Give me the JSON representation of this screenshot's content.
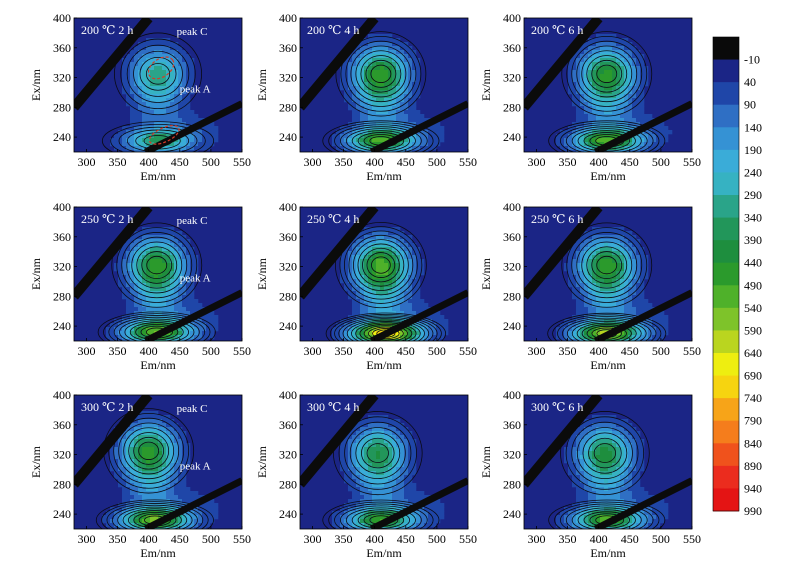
{
  "colors": {
    "background": "#1e2a8c",
    "contour_line": "#0a0a14",
    "scatter_band": "#0b0b0b",
    "annotation": "#ffffff",
    "marker": "#d23c28"
  },
  "colorbar": {
    "ticks": [
      "-10",
      "40",
      "90",
      "140",
      "190",
      "240",
      "290",
      "340",
      "390",
      "440",
      "490",
      "540",
      "590",
      "640",
      "690",
      "740",
      "790",
      "840",
      "890",
      "940",
      "990"
    ],
    "colors": [
      "#0a0a0a",
      "#1b2586",
      "#1f46a8",
      "#2f6fc4",
      "#3592d4",
      "#3aacd8",
      "#36b2c2",
      "#2aa489",
      "#22965a",
      "#1e8e3e",
      "#2b9a2c",
      "#4fb12a",
      "#7ec32a",
      "#bad51f",
      "#eeee10",
      "#f6d410",
      "#f7a418",
      "#f57d1c",
      "#f0521c",
      "#eb2c1e",
      "#e41414"
    ]
  },
  "chart_data": [
    {
      "type": "heatmap",
      "label": "200 ℃ 2 h",
      "xlabel": "Em/nm",
      "ylabel": "Ex/nm",
      "xlim": [
        280,
        550
      ],
      "ylim": [
        220,
        400
      ],
      "xticks": [
        "300",
        "350",
        "400",
        "450",
        "500",
        "550"
      ],
      "yticks": [
        "240",
        "280",
        "320",
        "360",
        "400"
      ],
      "peaks": [
        "peak C",
        "peak A"
      ],
      "marker": true,
      "c": {
        "x": 415,
        "y": 325,
        "v": 300
      },
      "a": {
        "x": 415,
        "y": 235,
        "v": 330
      }
    },
    {
      "type": "heatmap",
      "label": "200 ℃ 4 h",
      "xlabel": "Em/nm",
      "ylabel": "Ex/nm",
      "xlim": [
        280,
        550
      ],
      "ylim": [
        220,
        400
      ],
      "xticks": [
        "300",
        "350",
        "400",
        "450",
        "500",
        "550"
      ],
      "yticks": [
        "240",
        "280",
        "320",
        "360",
        "400"
      ],
      "peaks": [],
      "c": {
        "x": 410,
        "y": 325,
        "v": 440
      },
      "a": {
        "x": 410,
        "y": 235,
        "v": 460
      }
    },
    {
      "type": "heatmap",
      "label": "200 ℃ 6 h",
      "xlabel": "Em/nm",
      "ylabel": "Ex/nm",
      "xlim": [
        280,
        550
      ],
      "ylim": [
        220,
        400
      ],
      "xticks": [
        "300",
        "350",
        "400",
        "450",
        "500",
        "550"
      ],
      "yticks": [
        "240",
        "280",
        "320",
        "360",
        "400"
      ],
      "peaks": [],
      "c": {
        "x": 413,
        "y": 325,
        "v": 420
      },
      "a": {
        "x": 413,
        "y": 235,
        "v": 480
      }
    },
    {
      "type": "heatmap",
      "label": "250 ℃ 2 h",
      "xlabel": "Em/nm",
      "ylabel": "Ex/nm",
      "xlim": [
        280,
        550
      ],
      "ylim": [
        220,
        400
      ],
      "xticks": [
        "300",
        "350",
        "400",
        "450",
        "500",
        "550"
      ],
      "yticks": [
        "240",
        "280",
        "320",
        "360",
        "400"
      ],
      "peaks": [
        "peak C",
        "peak A"
      ],
      "c": {
        "x": 413,
        "y": 322,
        "v": 440
      },
      "a": {
        "x": 413,
        "y": 232,
        "v": 500
      }
    },
    {
      "type": "heatmap",
      "label": "250 ℃ 4 h",
      "xlabel": "Em/nm",
      "ylabel": "Ex/nm",
      "xlim": [
        280,
        550
      ],
      "ylim": [
        220,
        400
      ],
      "xticks": [
        "300",
        "350",
        "400",
        "450",
        "500",
        "550"
      ],
      "yticks": [
        "240",
        "280",
        "320",
        "360",
        "400"
      ],
      "peaks": [],
      "c": {
        "x": 410,
        "y": 322,
        "v": 480
      },
      "a": {
        "x": 418,
        "y": 230,
        "v": 690
      }
    },
    {
      "type": "heatmap",
      "label": "250 ℃ 6 h",
      "xlabel": "Em/nm",
      "ylabel": "Ex/nm",
      "xlim": [
        280,
        550
      ],
      "ylim": [
        220,
        400
      ],
      "xticks": [
        "300",
        "350",
        "400",
        "450",
        "500",
        "550"
      ],
      "yticks": [
        "240",
        "280",
        "320",
        "360",
        "400"
      ],
      "peaks": [],
      "c": {
        "x": 413,
        "y": 322,
        "v": 440
      },
      "a": {
        "x": 413,
        "y": 230,
        "v": 560
      }
    },
    {
      "type": "heatmap",
      "label": "300 ℃ 2 h",
      "xlabel": "Em/nm",
      "ylabel": "Ex/nm",
      "xlim": [
        280,
        550
      ],
      "ylim": [
        220,
        400
      ],
      "xticks": [
        "300",
        "350",
        "400",
        "450",
        "500",
        "550"
      ],
      "yticks": [
        "240",
        "280",
        "320",
        "360",
        "400"
      ],
      "peaks": [
        "peak C",
        "peak A"
      ],
      "c": {
        "x": 400,
        "y": 325,
        "v": 430
      },
      "a": {
        "x": 410,
        "y": 232,
        "v": 520
      }
    },
    {
      "type": "heatmap",
      "label": "300 ℃ 4 h",
      "xlabel": "Em/nm",
      "ylabel": "Ex/nm",
      "xlim": [
        280,
        550
      ],
      "ylim": [
        220,
        400
      ],
      "xticks": [
        "300",
        "350",
        "400",
        "450",
        "500",
        "550"
      ],
      "yticks": [
        "240",
        "280",
        "320",
        "360",
        "400"
      ],
      "peaks": [],
      "c": {
        "x": 405,
        "y": 322,
        "v": 360
      },
      "a": {
        "x": 410,
        "y": 232,
        "v": 450
      }
    },
    {
      "type": "heatmap",
      "label": "300 ℃ 6 h",
      "xlabel": "Em/nm",
      "ylabel": "Ex/nm",
      "xlim": [
        280,
        550
      ],
      "ylim": [
        220,
        400
      ],
      "xticks": [
        "300",
        "350",
        "400",
        "450",
        "500",
        "550"
      ],
      "yticks": [
        "240",
        "280",
        "320",
        "360",
        "400"
      ],
      "peaks": [],
      "c": {
        "x": 410,
        "y": 322,
        "v": 380
      },
      "a": {
        "x": 413,
        "y": 232,
        "v": 470
      }
    }
  ]
}
